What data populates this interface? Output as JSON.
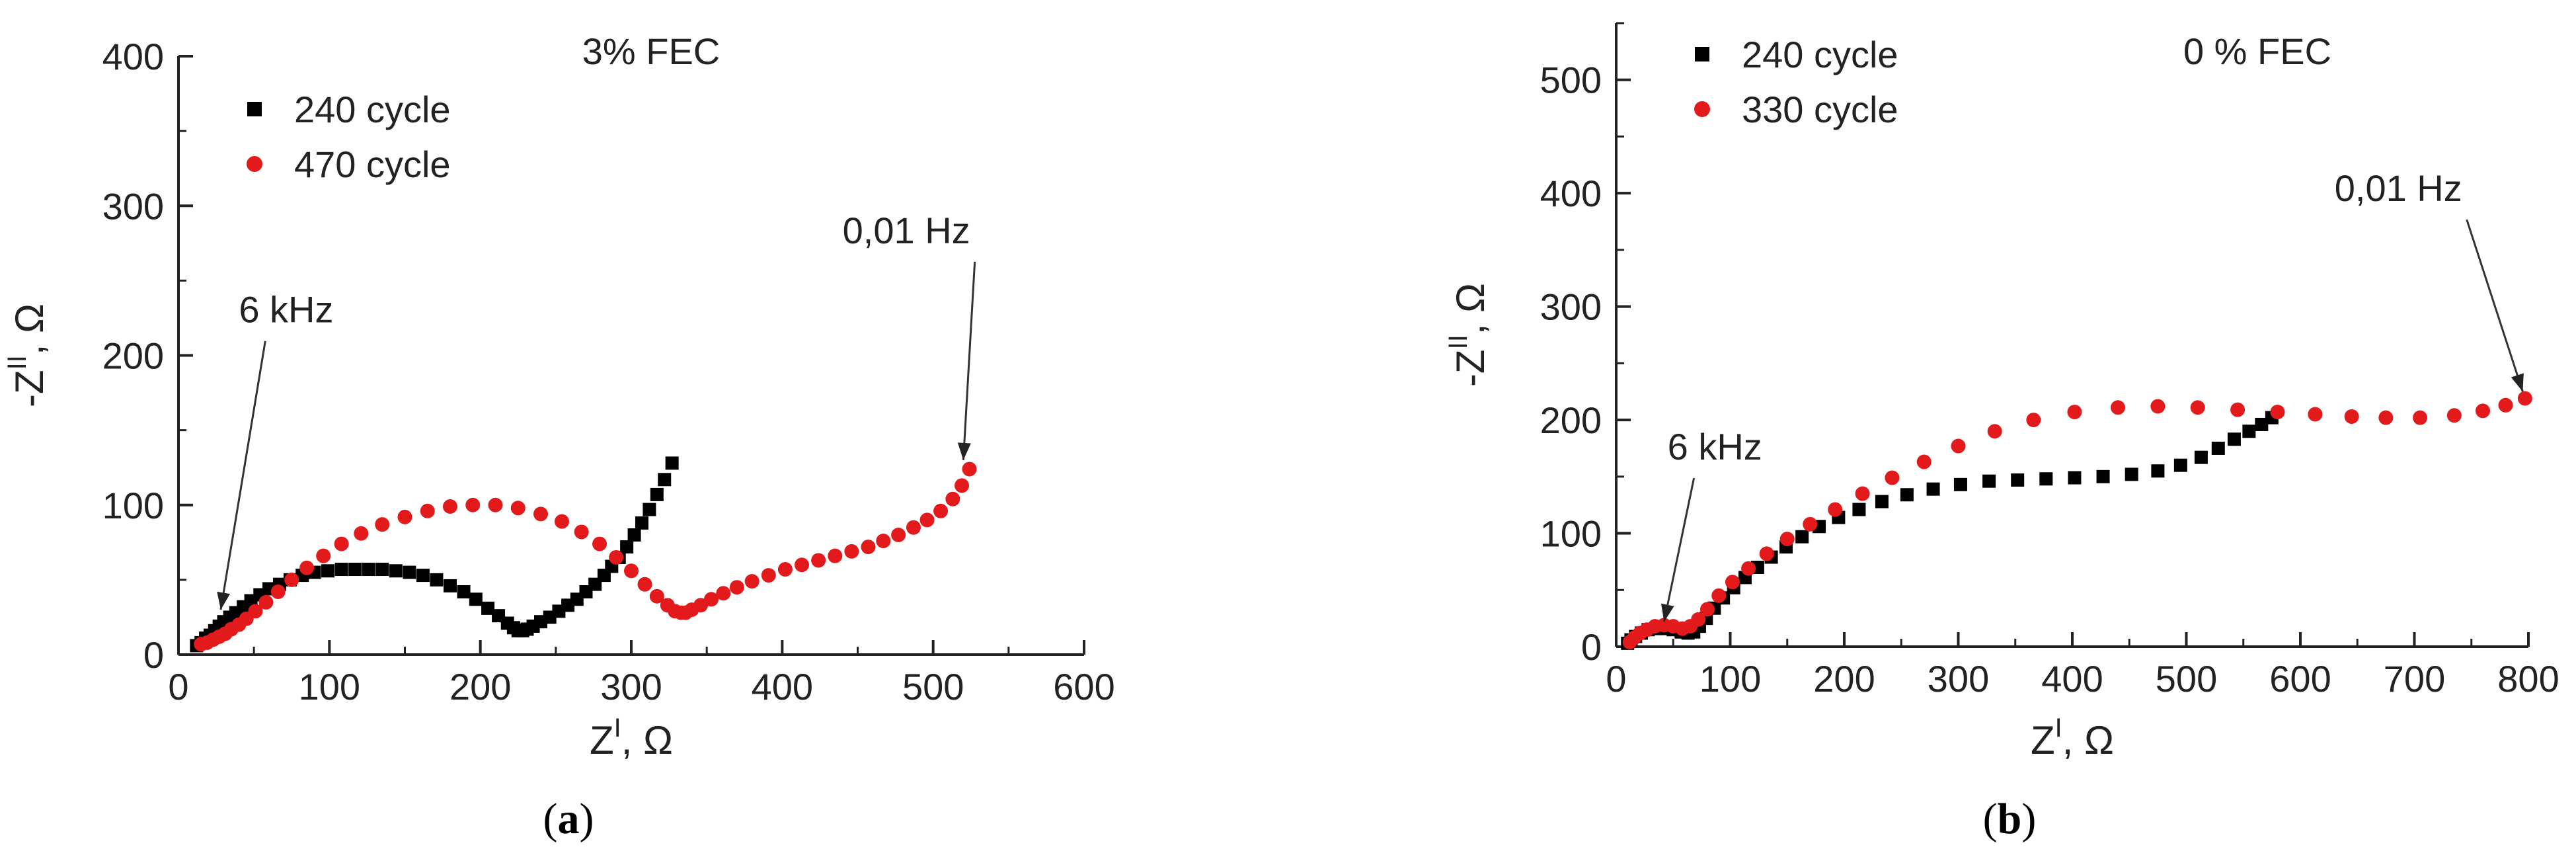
{
  "chart_data": [
    {
      "type": "scatter",
      "panel_label": "a",
      "title": "3% FEC",
      "xlabel": "Z",
      "xlabel_sup": "I",
      "ylabel": "-Z",
      "ylabel_sup": "II",
      "unit": "Ω",
      "xlim": [
        0,
        600
      ],
      "ylim": [
        0,
        400
      ],
      "xticks": [
        0,
        100,
        200,
        300,
        400,
        500,
        600
      ],
      "yticks": [
        0,
        100,
        200,
        300,
        400
      ],
      "legend_position": "top-left",
      "series": [
        {
          "name": "240 cycle",
          "marker": "square",
          "color": "#000000",
          "x": [
            12,
            15,
            18,
            21,
            24,
            27,
            30,
            34,
            38,
            43,
            48,
            54,
            60,
            67,
            74,
            82,
            90,
            99,
            108,
            117,
            126,
            135,
            144,
            153,
            162,
            171,
            180,
            189,
            197,
            205,
            212,
            218,
            222,
            225,
            228,
            231,
            235,
            240,
            246,
            252,
            258,
            264,
            270,
            276,
            282,
            287,
            292,
            297,
            302,
            307,
            312,
            317,
            322,
            327
          ],
          "y": [
            6,
            8,
            11,
            13,
            16,
            19,
            22,
            25,
            28,
            32,
            36,
            40,
            44,
            47,
            50,
            53,
            55,
            56,
            57,
            57,
            57,
            57,
            56,
            55,
            53,
            50,
            46,
            42,
            37,
            31,
            26,
            21,
            18,
            16,
            16,
            17,
            19,
            22,
            25,
            29,
            33,
            37,
            42,
            47,
            53,
            59,
            65,
            72,
            80,
            88,
            97,
            107,
            117,
            128
          ]
        },
        {
          "name": "470 cycle",
          "marker": "circle",
          "color": "#e31a1c",
          "x": [
            15,
            19,
            23,
            27,
            31,
            35,
            40,
            45,
            51,
            58,
            66,
            75,
            85,
            96,
            108,
            121,
            135,
            150,
            165,
            180,
            195,
            210,
            225,
            240,
            254,
            267,
            279,
            290,
            300,
            309,
            317,
            324,
            329,
            333,
            336,
            340,
            346,
            353,
            361,
            370,
            380,
            391,
            402,
            413,
            424,
            435,
            446,
            457,
            467,
            477,
            487,
            496,
            505,
            513,
            519,
            524
          ],
          "y": [
            7,
            8,
            10,
            12,
            14,
            17,
            20,
            24,
            29,
            35,
            42,
            50,
            58,
            66,
            74,
            81,
            87,
            92,
            96,
            99,
            100,
            100,
            98,
            94,
            89,
            82,
            74,
            65,
            56,
            47,
            39,
            33,
            29,
            28,
            28,
            30,
            33,
            37,
            41,
            45,
            49,
            53,
            57,
            60,
            63,
            66,
            69,
            72,
            76,
            80,
            85,
            90,
            96,
            104,
            113,
            124
          ]
        }
      ],
      "annotations": [
        {
          "text": "6 kHz",
          "x": 28,
          "y": 30,
          "text_x": 40,
          "text_y": 222
        },
        {
          "text": "0,01 Hz",
          "x": 520,
          "y": 130,
          "text_x": 440,
          "text_y": 275
        }
      ]
    },
    {
      "type": "scatter",
      "panel_label": "b",
      "title": "0 % FEC",
      "xlabel": "Z",
      "xlabel_sup": "I",
      "ylabel": "-Z",
      "ylabel_sup": "II",
      "unit": "Ω",
      "xlim": [
        0,
        800
      ],
      "ylim": [
        0,
        550
      ],
      "xticks": [
        0,
        100,
        200,
        300,
        400,
        500,
        600,
        700,
        800
      ],
      "yticks": [
        0,
        100,
        200,
        300,
        400,
        500
      ],
      "legend_position": "top-left",
      "series": [
        {
          "name": "240 cycle",
          "marker": "square",
          "color": "#000000",
          "x": [
            10,
            13,
            17,
            22,
            28,
            35,
            42,
            50,
            57,
            63,
            68,
            73,
            79,
            86,
            94,
            103,
            113,
            124,
            136,
            149,
            163,
            178,
            195,
            213,
            233,
            255,
            278,
            302,
            327,
            352,
            377,
            402,
            427,
            452,
            475,
            495,
            513,
            528,
            542,
            555,
            566,
            575
          ],
          "y": [
            3,
            6,
            9,
            12,
            15,
            16,
            16,
            15,
            13,
            12,
            13,
            18,
            25,
            34,
            43,
            52,
            61,
            70,
            79,
            88,
            97,
            106,
            114,
            121,
            128,
            134,
            139,
            143,
            146,
            147,
            148,
            149,
            150,
            152,
            155,
            160,
            167,
            175,
            183,
            190,
            196,
            202
          ]
        },
        {
          "name": "330 cycle",
          "marker": "circle",
          "color": "#e31a1c",
          "x": [
            12,
            16,
            21,
            27,
            34,
            42,
            50,
            58,
            65,
            72,
            80,
            90,
            102,
            116,
            132,
            150,
            170,
            192,
            216,
            242,
            270,
            300,
            332,
            366,
            402,
            440,
            475,
            510,
            545,
            580,
            613,
            645,
            675,
            705,
            735,
            760,
            780,
            797
          ],
          "y": [
            4,
            8,
            12,
            15,
            18,
            19,
            18,
            16,
            18,
            24,
            33,
            45,
            57,
            69,
            82,
            95,
            108,
            121,
            135,
            149,
            163,
            177,
            190,
            200,
            207,
            211,
            212,
            211,
            209,
            207,
            205,
            203,
            202,
            202,
            204,
            208,
            213,
            219
          ]
        }
      ],
      "annotations": [
        {
          "text": "6 kHz",
          "x": 42,
          "y": 22,
          "text_x": 45,
          "text_y": 165
        },
        {
          "text": "0,01 Hz",
          "x": 795,
          "y": 225,
          "text_x": 630,
          "text_y": 393
        }
      ]
    }
  ]
}
